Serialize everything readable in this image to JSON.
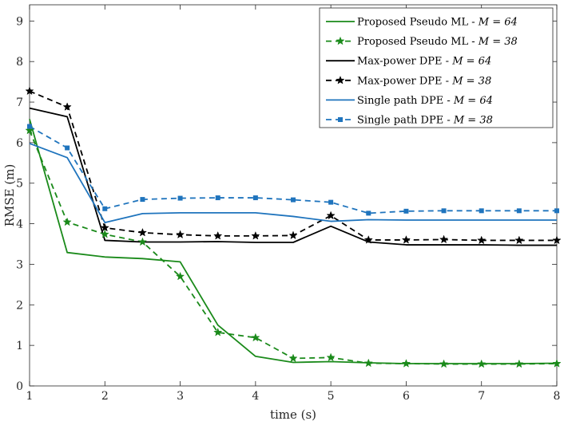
{
  "chart_data": {
    "type": "line",
    "title": "",
    "xlabel": "time (s)",
    "ylabel": "RMSE (m)",
    "xlim": [
      1,
      8
    ],
    "ylim": [
      0,
      9.4
    ],
    "xticks": [
      1,
      2,
      3,
      4,
      5,
      6,
      7,
      8
    ],
    "yticks": [
      0,
      1,
      2,
      3,
      4,
      5,
      6,
      7,
      8,
      9
    ],
    "x": [
      1,
      1.5,
      2,
      2.5,
      3,
      3.5,
      4,
      4.5,
      5,
      5.5,
      6,
      6.5,
      7,
      7.5,
      8
    ],
    "legend_position": "top-right",
    "series": [
      {
        "name": "Proposed Pseudo ML - ",
        "m_value": "M = 64",
        "color": "#1a8a1a",
        "dash": "solid",
        "marker": "none",
        "values": [
          6.58,
          3.29,
          3.18,
          3.14,
          3.06,
          1.5,
          0.73,
          0.58,
          0.6,
          0.57,
          0.55,
          0.55,
          0.55,
          0.55,
          0.56
        ]
      },
      {
        "name": "Proposed Pseudo ML - ",
        "m_value": "M = 38",
        "color": "#1a8a1a",
        "dash": "dashed",
        "marker": "star",
        "values": [
          6.3,
          4.04,
          3.74,
          3.55,
          2.7,
          1.32,
          1.19,
          0.68,
          0.7,
          0.56,
          0.55,
          0.54,
          0.54,
          0.54,
          0.55
        ]
      },
      {
        "name": "Max-power DPE - ",
        "m_value": "M = 64",
        "color": "#000000",
        "dash": "solid",
        "marker": "none",
        "values": [
          6.85,
          6.64,
          3.59,
          3.55,
          3.55,
          3.56,
          3.54,
          3.54,
          3.94,
          3.55,
          3.48,
          3.48,
          3.48,
          3.47,
          3.47
        ]
      },
      {
        "name": "Max-power DPE - ",
        "m_value": "M = 38",
        "color": "#000000",
        "dash": "dashed",
        "marker": "star",
        "values": [
          7.27,
          6.88,
          3.9,
          3.78,
          3.73,
          3.7,
          3.7,
          3.71,
          4.2,
          3.6,
          3.6,
          3.61,
          3.59,
          3.59,
          3.59
        ]
      },
      {
        "name": "Single path DPE - ",
        "m_value": "M = 64",
        "color": "#1f74bd",
        "dash": "solid",
        "marker": "none",
        "values": [
          5.98,
          5.63,
          4.03,
          4.25,
          4.27,
          4.27,
          4.27,
          4.18,
          4.06,
          4.1,
          4.09,
          4.09,
          4.09,
          4.09,
          4.09
        ]
      },
      {
        "name": "Single path DPE - ",
        "m_value": "M = 38",
        "color": "#1f74bd",
        "dash": "dashed",
        "marker": "square",
        "values": [
          6.4,
          5.87,
          4.37,
          4.6,
          4.63,
          4.64,
          4.64,
          4.59,
          4.53,
          4.26,
          4.31,
          4.32,
          4.32,
          4.32,
          4.32
        ]
      }
    ]
  }
}
